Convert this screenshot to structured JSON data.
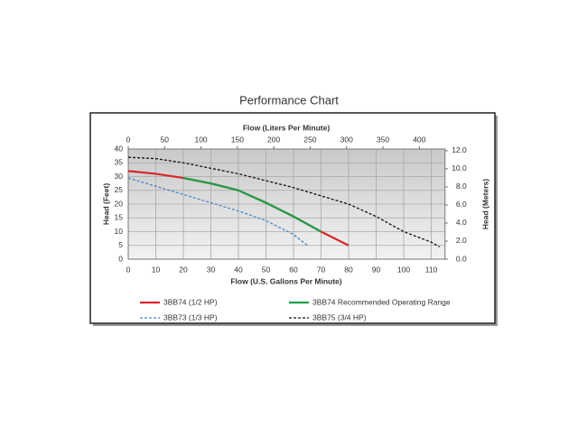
{
  "chart_data": {
    "type": "line",
    "title": "Performance Chart",
    "x_label": "Flow (U.S. Gallons Per Minute)",
    "x2_label": "Flow (Liters Per Minute)",
    "y_label": "Head (Feet)",
    "y2_label": "Head (Meters)",
    "xlim": [
      0,
      115
    ],
    "xticks": [
      0,
      10,
      20,
      30,
      40,
      50,
      60,
      70,
      80,
      90,
      100,
      110
    ],
    "x2lim": [
      0,
      435.3
    ],
    "x2ticks": [
      0,
      50,
      100,
      150,
      200,
      250,
      300,
      350,
      400
    ],
    "ylim": [
      0,
      40
    ],
    "yticks": [
      0,
      5,
      10,
      15,
      20,
      25,
      30,
      35,
      40
    ],
    "y2lim": [
      0,
      12.19
    ],
    "y2ticks": [
      {
        "value": 0,
        "label": "0.0"
      },
      {
        "value": 2,
        "label": "2.0"
      },
      {
        "value": 4,
        "label": "4.0"
      },
      {
        "value": 6,
        "label": "6.0"
      },
      {
        "value": 8,
        "label": "8.0"
      },
      {
        "value": 10,
        "label": "10.0"
      },
      {
        "value": 12,
        "label": "12.0"
      }
    ],
    "grid": true,
    "series": [
      {
        "name": "3BB74 (1/2 HP)",
        "color": "#d9262a",
        "line_style": "solid",
        "x": [
          0,
          10,
          20,
          30,
          40,
          50,
          60,
          70,
          80
        ],
        "values": [
          32,
          31,
          29.5,
          27.5,
          25,
          20.5,
          15.5,
          10,
          5
        ]
      },
      {
        "name": "3BB74 Recommended Operating Range",
        "color": "#1f9e48",
        "line_style": "solid",
        "x": [
          20,
          30,
          40,
          50,
          60,
          70
        ],
        "values": [
          29.5,
          27.5,
          25,
          20.5,
          15.5,
          10
        ]
      },
      {
        "name": "3BB73 (1/3 HP)",
        "color": "#4a86c8",
        "line_style": "dashed",
        "x": [
          0,
          10,
          20,
          30,
          40,
          50,
          60,
          65
        ],
        "values": [
          29.5,
          26.5,
          23.5,
          20.5,
          17.5,
          14,
          9,
          5
        ]
      },
      {
        "name": "3BB75 (3/4 HP)",
        "color": "#111111",
        "line_style": "dashed",
        "x": [
          0,
          10,
          20,
          30,
          40,
          50,
          60,
          70,
          80,
          90,
          100,
          110,
          113
        ],
        "values": [
          37,
          36.5,
          35,
          33,
          31,
          28.5,
          26,
          23,
          20,
          15.5,
          10,
          6.2,
          4.5
        ]
      }
    ]
  }
}
